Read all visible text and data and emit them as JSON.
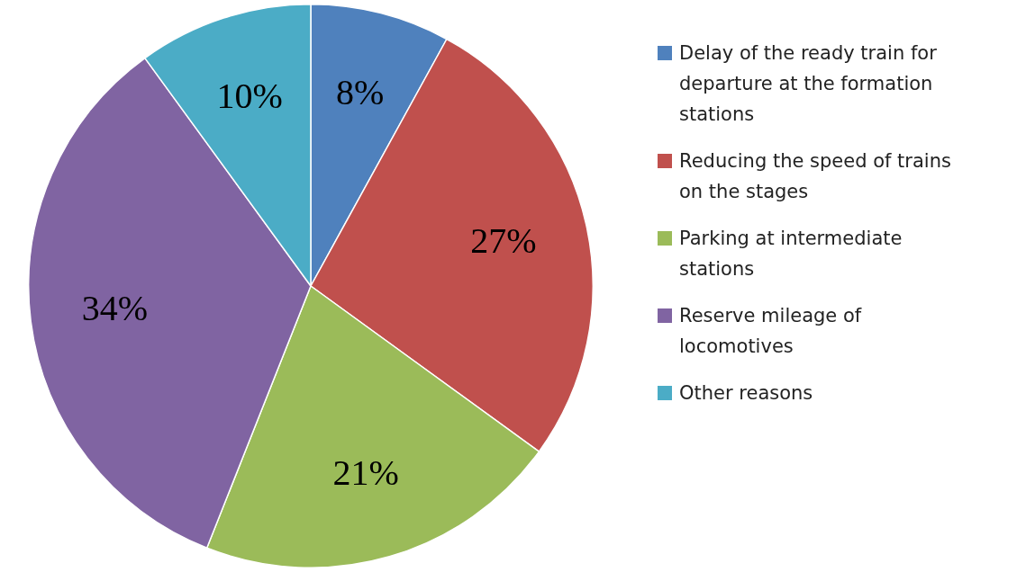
{
  "chart_data": {
    "type": "pie",
    "categories": [
      "Delay of the ready train for departure at the formation stations",
      "Reducing the speed of trains on the stages",
      "Parking at intermediate stations",
      "Reserve mileage of locomotives",
      "Other reasons"
    ],
    "values": [
      8,
      27,
      21,
      34,
      10
    ],
    "colors": [
      "#4f81bd",
      "#c0504d",
      "#9bbb59",
      "#8064a2",
      "#4bacc6"
    ],
    "value_labels": [
      "8%",
      "27%",
      "21%",
      "34%",
      "10%"
    ],
    "legend": "right"
  }
}
